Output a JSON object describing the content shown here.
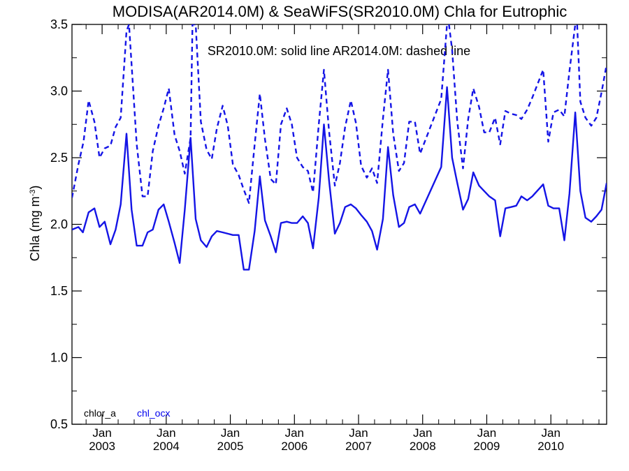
{
  "chart_data": {
    "type": "line",
    "title": "MODISA(AR2014.0M) & SeaWiFS(SR2010.0M)  Chla for Eutrophic",
    "ylabel": "Chla (mg m",
    "ylabel_sup": "-3",
    "ylabel_close": ")",
    "annotation": "SR2010.0M: solid line   AR2014.0M: dashed line",
    "ylim": [
      0.5,
      3.5
    ],
    "xlim": [
      2002.53,
      2010.87
    ],
    "yticks": [
      "0.5",
      "1.0",
      "1.5",
      "2.0",
      "2.5",
      "3.0",
      "3.5"
    ],
    "xticks": [
      {
        "month": "Jan",
        "year": "2003"
      },
      {
        "month": "Jan",
        "year": "2004"
      },
      {
        "month": "Jan",
        "year": "2005"
      },
      {
        "month": "Jan",
        "year": "2006"
      },
      {
        "month": "Jan",
        "year": "2007"
      },
      {
        "month": "Jan",
        "year": "2008"
      },
      {
        "month": "Jan",
        "year": "2009"
      },
      {
        "month": "Jan",
        "year": "2010"
      }
    ],
    "legend": [
      {
        "label": "chlor_a",
        "color": "#000000"
      },
      {
        "label": "chl_ocx",
        "color": "#0000ee"
      }
    ],
    "series": [
      {
        "style": "solid",
        "color": "#1414e6",
        "x": [
          2002.53,
          2002.63,
          2002.7,
          2002.79,
          2002.88,
          2002.96,
          2003.04,
          2003.13,
          2003.21,
          2003.29,
          2003.38,
          2003.46,
          2003.54,
          2003.63,
          2003.71,
          2003.79,
          2003.88,
          2003.96,
          2004.04,
          2004.13,
          2004.21,
          2004.29,
          2004.38,
          2004.46,
          2004.54,
          2004.63,
          2004.71,
          2004.79,
          2004.88,
          2004.96,
          2005.04,
          2005.13,
          2005.21,
          2005.29,
          2005.38,
          2005.46,
          2005.54,
          2005.63,
          2005.71,
          2005.79,
          2005.88,
          2005.96,
          2006.04,
          2006.13,
          2006.21,
          2006.29,
          2006.38,
          2006.46,
          2006.54,
          2006.63,
          2006.71,
          2006.79,
          2006.88,
          2006.96,
          2007.04,
          2007.13,
          2007.21,
          2007.29,
          2007.38,
          2007.46,
          2007.54,
          2007.63,
          2007.71,
          2007.79,
          2007.88,
          2007.96,
          2008.29,
          2008.38,
          2008.46,
          2008.54,
          2008.63,
          2008.71,
          2008.79,
          2008.88,
          2008.96,
          2009.04,
          2009.13,
          2009.21,
          2009.29,
          2009.38,
          2009.46,
          2009.54,
          2009.63,
          2009.71,
          2009.88,
          2009.96,
          2010.04,
          2010.13,
          2010.21,
          2010.29,
          2010.38,
          2010.46,
          2010.54,
          2010.63,
          2010.71,
          2010.79,
          2010.87
        ],
        "y": [
          1.96,
          1.98,
          1.94,
          2.09,
          2.12,
          1.98,
          2.02,
          1.85,
          1.96,
          2.15,
          2.68,
          2.11,
          1.84,
          1.84,
          1.94,
          1.96,
          2.11,
          2.15,
          2.02,
          1.86,
          1.71,
          2.11,
          2.65,
          2.04,
          1.88,
          1.83,
          1.91,
          1.95,
          1.94,
          1.93,
          1.92,
          1.92,
          1.66,
          1.66,
          1.95,
          2.36,
          2.03,
          1.91,
          1.79,
          2.01,
          2.02,
          2.01,
          2.01,
          2.06,
          2.01,
          1.82,
          2.2,
          2.75,
          2.33,
          1.93,
          2.01,
          2.13,
          2.15,
          2.12,
          2.07,
          2.02,
          1.95,
          1.81,
          2.04,
          2.58,
          2.22,
          1.98,
          2.01,
          2.13,
          2.15,
          2.08,
          2.43,
          3.03,
          2.5,
          2.31,
          2.11,
          2.19,
          2.39,
          2.29,
          2.25,
          2.21,
          2.18,
          1.91,
          2.12,
          2.13,
          2.14,
          2.21,
          2.18,
          2.21,
          2.3,
          2.14,
          2.12,
          2.12,
          1.88,
          2.23,
          2.84,
          2.25,
          2.05,
          2.02,
          2.06,
          2.11,
          2.31
        ]
      },
      {
        "style": "dashed",
        "color": "#1414e6",
        "x": [
          2002.53,
          2002.63,
          2002.71,
          2002.79,
          2002.88,
          2002.96,
          2003.04,
          2003.13,
          2003.21,
          2003.29,
          2003.38,
          2003.42,
          2003.54,
          2003.63,
          2003.71,
          2003.79,
          2003.88,
          2003.96,
          2004.04,
          2004.13,
          2004.21,
          2004.29,
          2004.38,
          2004.41,
          2004.46,
          2004.54,
          2004.63,
          2004.71,
          2004.79,
          2004.88,
          2004.96,
          2005.04,
          2005.13,
          2005.21,
          2005.29,
          2005.38,
          2005.46,
          2005.54,
          2005.63,
          2005.71,
          2005.79,
          2005.88,
          2005.96,
          2006.04,
          2006.13,
          2006.21,
          2006.29,
          2006.38,
          2006.46,
          2006.54,
          2006.63,
          2006.71,
          2006.79,
          2006.88,
          2006.96,
          2007.04,
          2007.13,
          2007.21,
          2007.29,
          2007.38,
          2007.46,
          2007.54,
          2007.63,
          2007.71,
          2007.79,
          2007.88,
          2007.96,
          2008.29,
          2008.38,
          2008.41,
          2008.46,
          2008.54,
          2008.63,
          2008.71,
          2008.79,
          2008.88,
          2008.96,
          2009.04,
          2009.13,
          2009.21,
          2009.29,
          2009.38,
          2009.46,
          2009.54,
          2009.63,
          2009.71,
          2009.88,
          2009.96,
          2010.04,
          2010.13,
          2010.21,
          2010.29,
          2010.38,
          2010.41,
          2010.46,
          2010.54,
          2010.63,
          2010.71,
          2010.79,
          2010.87
        ],
        "y": [
          2.2,
          2.45,
          2.62,
          2.93,
          2.77,
          2.5,
          2.57,
          2.59,
          2.73,
          2.8,
          3.45,
          3.5,
          2.6,
          2.21,
          2.21,
          2.55,
          2.74,
          2.87,
          3.02,
          2.67,
          2.55,
          2.38,
          2.65,
          3.5,
          3.5,
          2.77,
          2.56,
          2.49,
          2.72,
          2.89,
          2.74,
          2.45,
          2.37,
          2.26,
          2.16,
          2.6,
          2.98,
          2.64,
          2.34,
          2.3,
          2.75,
          2.87,
          2.75,
          2.5,
          2.43,
          2.4,
          2.24,
          2.75,
          3.16,
          2.7,
          2.29,
          2.46,
          2.73,
          2.93,
          2.76,
          2.44,
          2.35,
          2.42,
          2.31,
          2.79,
          3.16,
          2.68,
          2.4,
          2.46,
          2.77,
          2.77,
          2.53,
          2.94,
          3.5,
          3.5,
          3.31,
          2.77,
          2.42,
          2.79,
          3.02,
          2.88,
          2.69,
          2.69,
          2.8,
          2.6,
          2.85,
          2.83,
          2.82,
          2.79,
          2.86,
          2.95,
          3.16,
          2.62,
          2.84,
          2.86,
          2.81,
          3.15,
          3.5,
          3.5,
          2.92,
          2.8,
          2.74,
          2.8,
          2.99,
          3.2
        ]
      }
    ]
  }
}
